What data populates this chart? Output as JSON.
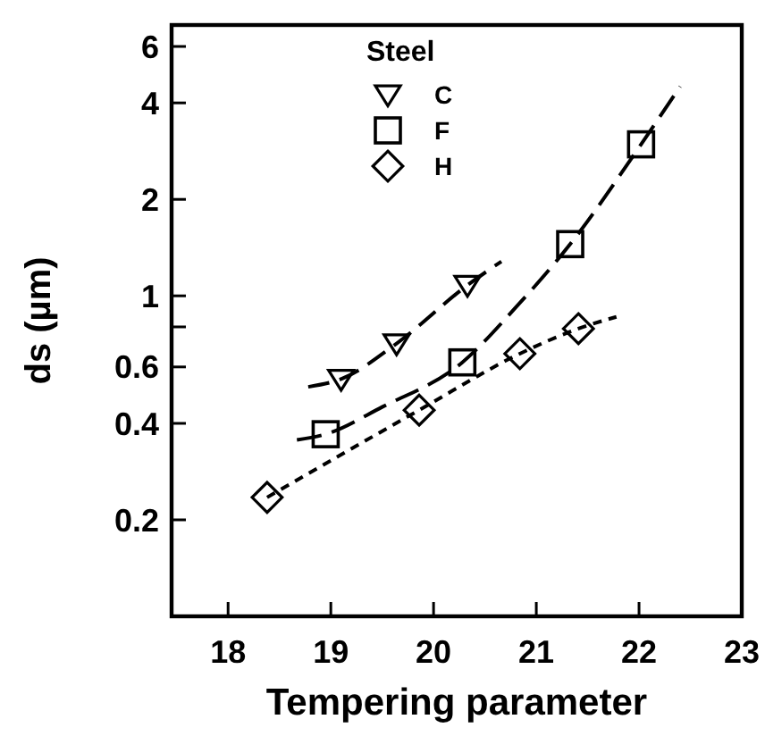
{
  "chart_data": {
    "type": "scatter",
    "xlabel": "Tempering parameter",
    "ylabel": "ds  (µm)",
    "legend_title": "Steel",
    "legend": "top",
    "log": "y",
    "grid": false,
    "xlim": [
      17.45,
      23
    ],
    "xticks": [
      18,
      19,
      20,
      21,
      22,
      23
    ],
    "ylim": [
      0.1,
      7
    ],
    "yticks": [
      0.2,
      0.4,
      0.6,
      {
        "value": 0.8,
        "label": null
      },
      1,
      2,
      4,
      6
    ],
    "series": [
      {
        "name": "C",
        "marker": "triangle",
        "color": "#000000",
        "x": [
          19.1,
          19.64,
          20.33
        ],
        "values": [
          0.55,
          0.71,
          1.08
        ]
      },
      {
        "name": "F",
        "marker": "square",
        "color": "#000000",
        "x": [
          18.95,
          20.28,
          21.33,
          22.02
        ],
        "values": [
          0.37,
          0.62,
          1.45,
          2.97
        ]
      },
      {
        "name": "H",
        "marker": "diamond",
        "color": "#000000",
        "x": [
          18.38,
          19.86,
          20.84,
          21.41
        ],
        "values": [
          0.235,
          0.44,
          0.66,
          0.79
        ]
      },
      {
        "type": "line",
        "line_style": "dashed",
        "color": "#000000",
        "x": [
          18.78,
          19.1,
          19.64,
          20.33,
          20.66
        ],
        "values": [
          0.52,
          0.55,
          0.71,
          1.08,
          1.28
        ]
      },
      {
        "type": "line",
        "line_style": "dashed",
        "color": "#000000",
        "x": [
          18.67,
          18.95,
          19.5,
          20.28,
          20.8,
          21.33,
          22.02,
          22.4
        ],
        "values": [
          0.355,
          0.37,
          0.45,
          0.62,
          0.92,
          1.45,
          2.97,
          4.5
        ]
      },
      {
        "type": "line",
        "line_style": "dotted",
        "color": "#000000",
        "x": [
          18.38,
          19.86,
          20.84,
          21.41,
          21.78
        ],
        "values": [
          0.235,
          0.44,
          0.66,
          0.79,
          0.86
        ]
      }
    ]
  }
}
